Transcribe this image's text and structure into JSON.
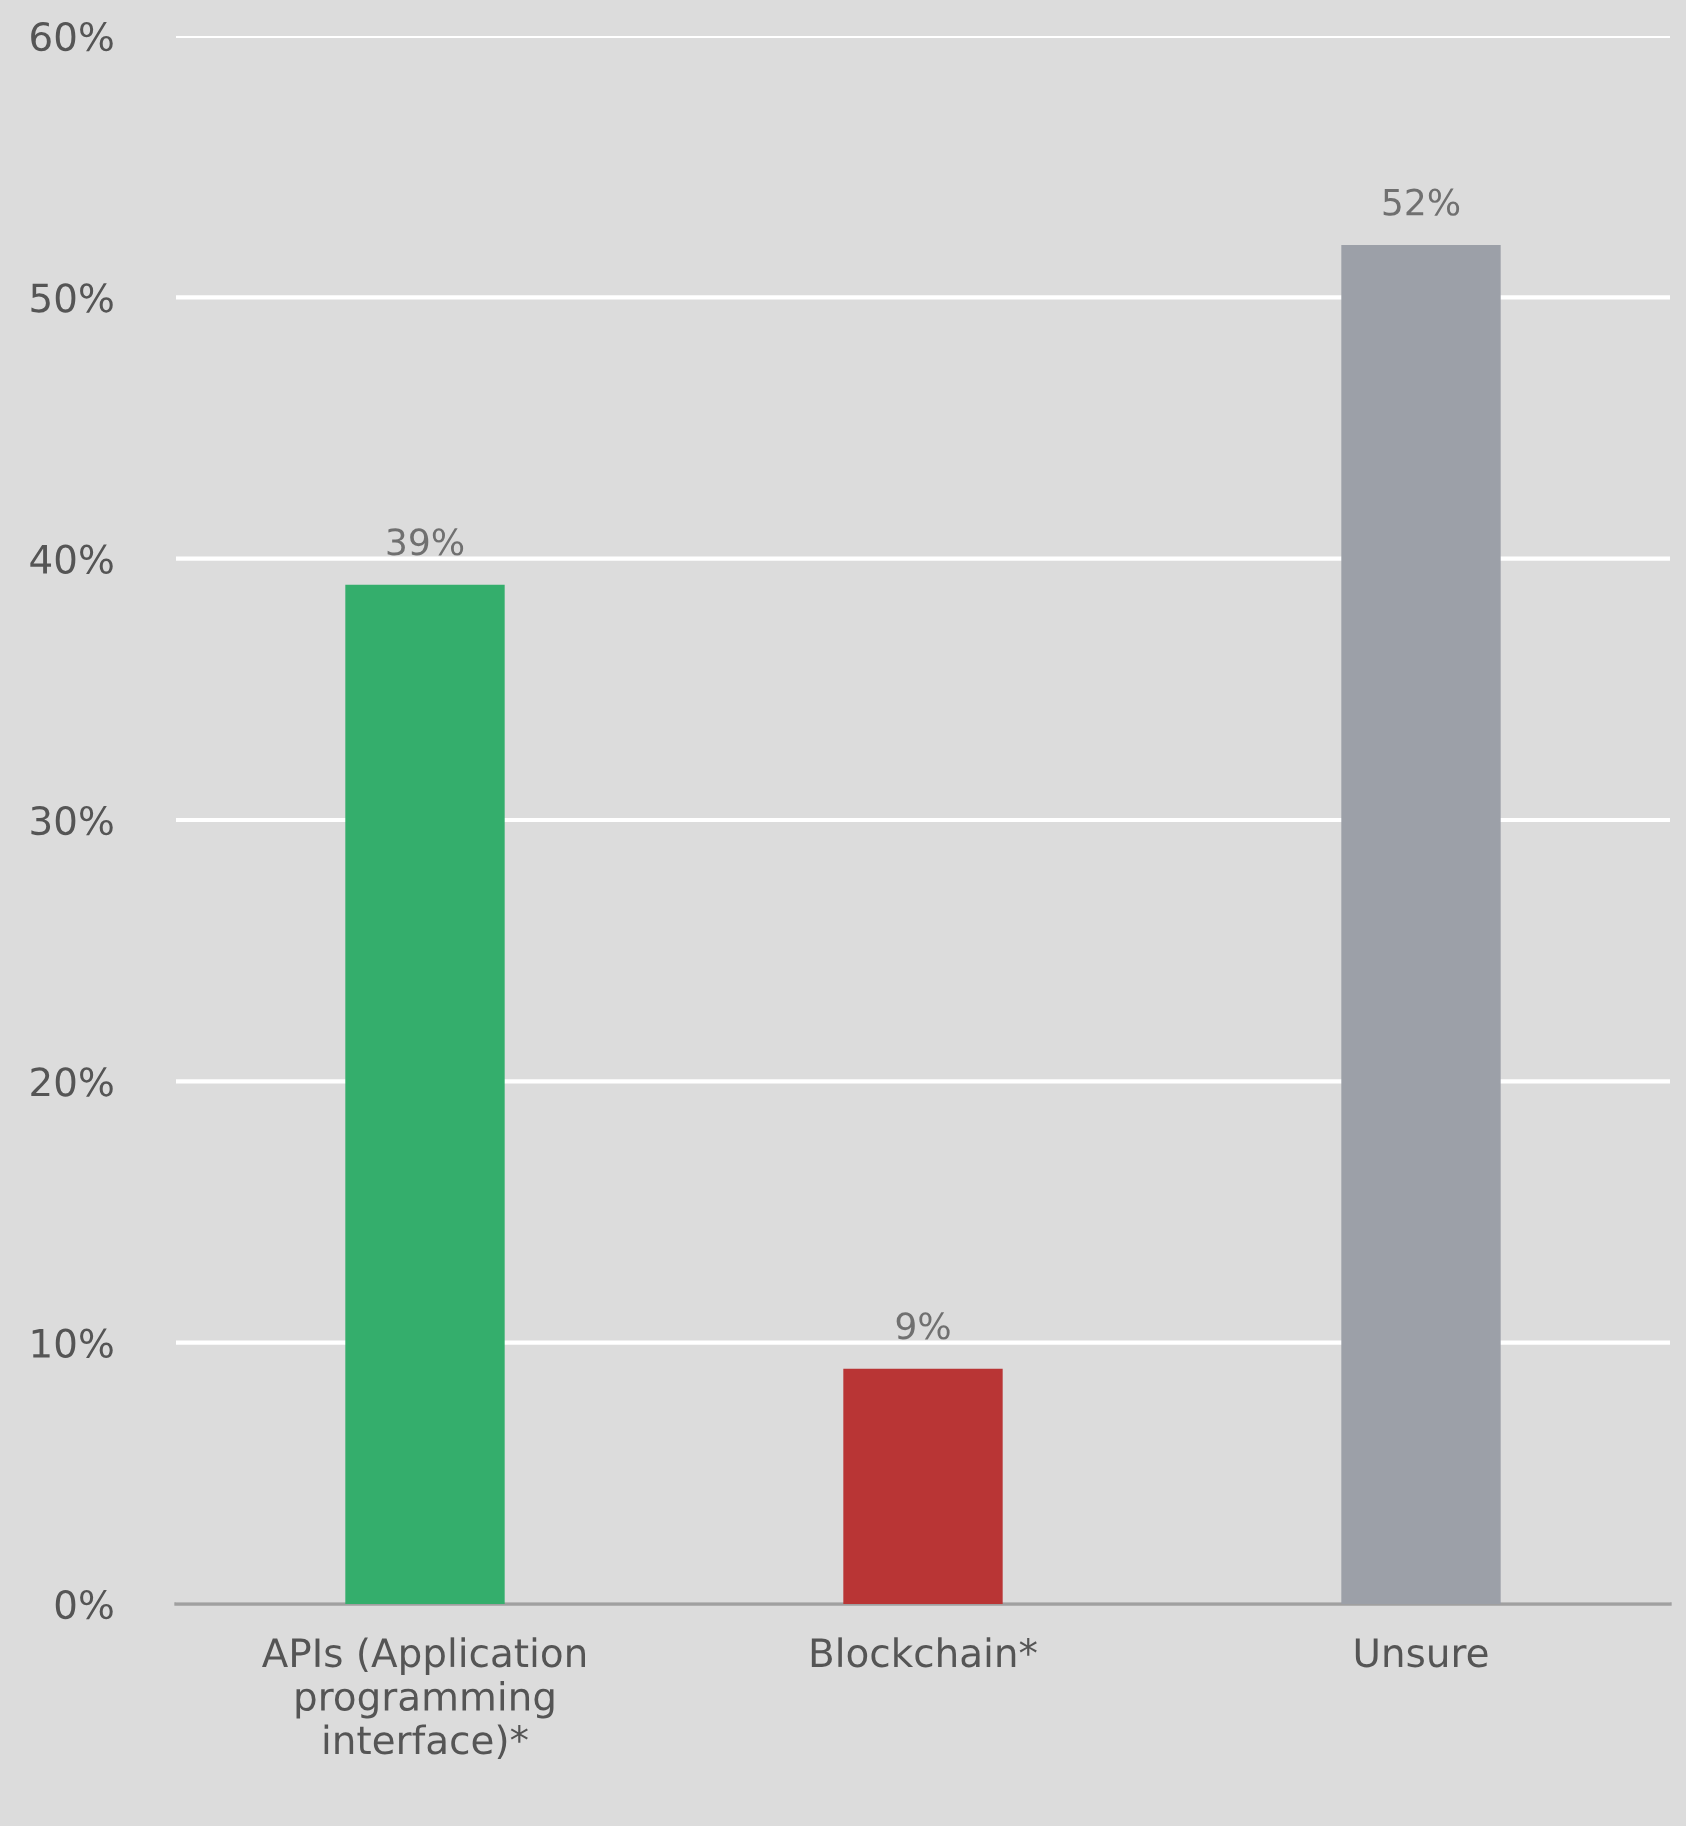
{
  "chart_data": {
    "type": "bar",
    "categories": [
      "APIs (Application\nprogramming\ninterface)*",
      "Blockchain*",
      "Unsure"
    ],
    "values": [
      39,
      9,
      52
    ],
    "colors": [
      "#34ae6c",
      "#b93535",
      "#9ca0a8"
    ],
    "value_labels": [
      "39%",
      "9%",
      "52%"
    ],
    "ylim": [
      0,
      60
    ],
    "yticks": [
      {
        "value": 0,
        "label": "0%"
      },
      {
        "value": 10,
        "label": "10%"
      },
      {
        "value": 20,
        "label": "20%"
      },
      {
        "value": 30,
        "label": "30%"
      },
      {
        "value": 40,
        "label": "40%"
      },
      {
        "value": 50,
        "label": "50%"
      },
      {
        "value": 60,
        "label": "60%"
      }
    ],
    "grid": "y"
  }
}
